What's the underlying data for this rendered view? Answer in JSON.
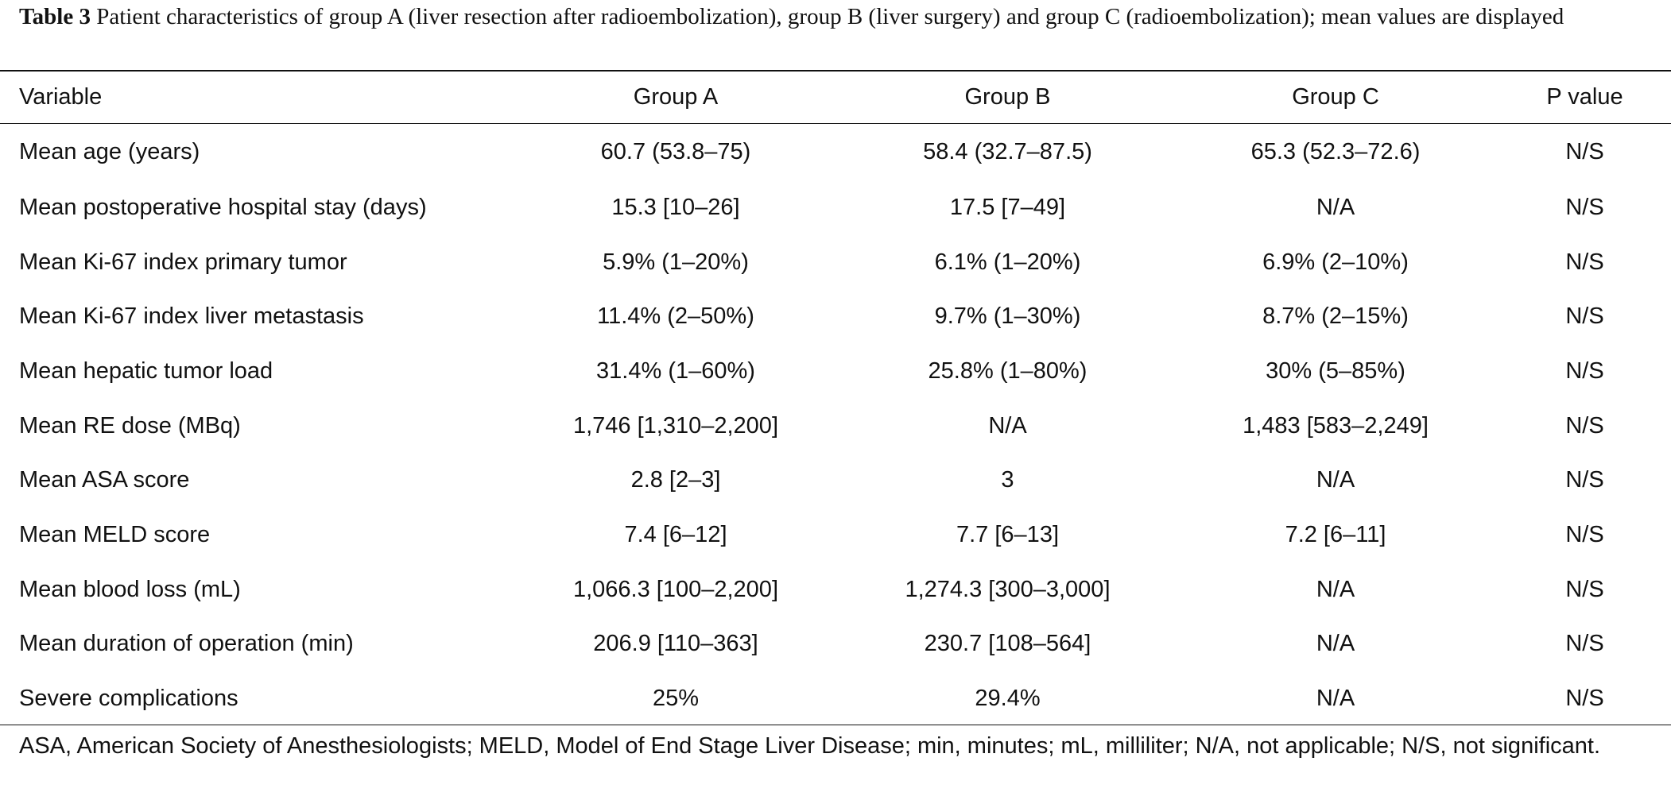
{
  "caption": {
    "label": "Table 3",
    "text": "Patient characteristics of group A (liver resection after radioembolization), group B (liver surgery) and group C (radioembolization); mean values are displayed"
  },
  "table": {
    "headers": [
      "Variable",
      "Group A",
      "Group B",
      "Group C",
      "P value"
    ],
    "rows": [
      [
        "Mean age (years)",
        "60.7 (53.8–75)",
        "58.4 (32.7–87.5)",
        "65.3 (52.3–72.6)",
        "N/S"
      ],
      [
        "Mean postoperative hospital stay (days)",
        "15.3 [10–26]",
        "17.5 [7–49]",
        "N/A",
        "N/S"
      ],
      [
        "Mean Ki-67 index primary tumor",
        "5.9% (1–20%)",
        "6.1% (1–20%)",
        "6.9% (2–10%)",
        "N/S"
      ],
      [
        "Mean Ki-67 index liver metastasis",
        "11.4% (2–50%)",
        "9.7% (1–30%)",
        "8.7% (2–15%)",
        "N/S"
      ],
      [
        "Mean hepatic tumor load",
        "31.4% (1–60%)",
        "25.8% (1–80%)",
        "30% (5–85%)",
        "N/S"
      ],
      [
        "Mean RE dose (MBq)",
        "1,746 [1,310–2,200]",
        "N/A",
        "1,483 [583–2,249]",
        "N/S"
      ],
      [
        "Mean ASA score",
        "2.8 [2–3]",
        "3",
        "N/A",
        "N/S"
      ],
      [
        "Mean MELD score",
        "7.4 [6–12]",
        "7.7 [6–13]",
        "7.2 [6–11]",
        "N/S"
      ],
      [
        "Mean blood loss (mL)",
        "1,066.3 [100–2,200]",
        "1,274.3 [300–3,000]",
        "N/A",
        "N/S"
      ],
      [
        "Mean duration of operation (min)",
        "206.9 [110–363]",
        "230.7 [108–564]",
        "N/A",
        "N/S"
      ],
      [
        "Severe complications",
        "25%",
        "29.4%",
        "N/A",
        "N/S"
      ]
    ]
  },
  "footnote": "ASA, American Society of Anesthesiologists; MELD, Model of End Stage Liver Disease; min, minutes; mL, milliliter; N/A, not applicable; N/S, not significant."
}
